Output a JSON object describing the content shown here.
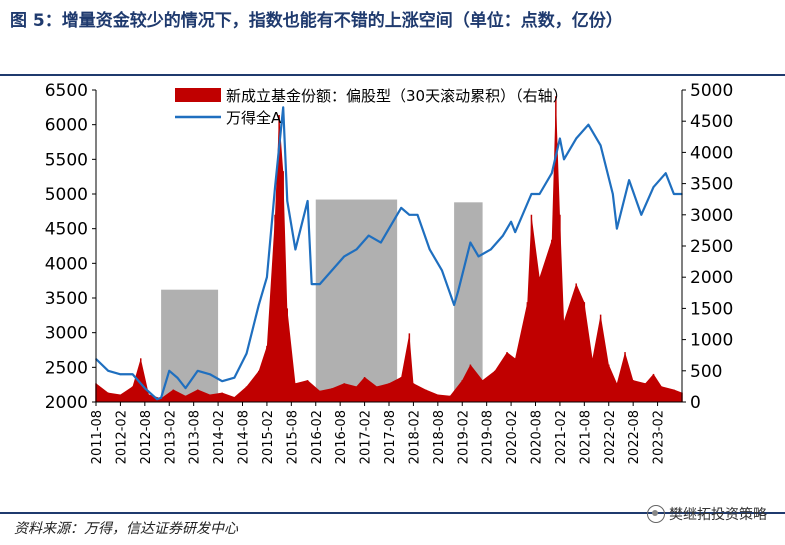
{
  "title": "图 5：增量资金较少的情况下，指数也能有不错的上涨空间（单位：点数，亿份）",
  "source": "资料来源：万得，信达证券研发中心",
  "watermark": "樊继拓投资策略",
  "colors": {
    "bar": "#c00000",
    "line": "#1f6fbf",
    "shade": "#b0b0b0",
    "title": "#1f3a6e"
  },
  "chart_data": {
    "type": "bar+line",
    "x_ticks": [
      "2011-08",
      "2012-02",
      "2012-08",
      "2013-02",
      "2013-08",
      "2014-02",
      "2014-08",
      "2015-02",
      "2015-08",
      "2016-02",
      "2016-08",
      "2017-02",
      "2017-08",
      "2018-02",
      "2018-08",
      "2019-02",
      "2019-08",
      "2020-02",
      "2020-08",
      "2021-02",
      "2021-08",
      "2022-02",
      "2022-08",
      "2023-02"
    ],
    "y_left": {
      "ticks": [
        2000,
        2500,
        3000,
        3500,
        4000,
        4500,
        5000,
        5500,
        6000,
        6500
      ],
      "range": [
        2000,
        6500
      ]
    },
    "y_right": {
      "ticks": [
        0,
        500,
        1000,
        1500,
        2000,
        2500,
        3000,
        3500,
        4000,
        4500,
        5000
      ],
      "range": [
        0,
        5000
      ]
    },
    "shaded_periods": [
      {
        "start": "2012-12",
        "end": "2014-02",
        "top": 3620
      },
      {
        "start": "2016-02",
        "end": "2017-10",
        "top": 4920
      },
      {
        "start": "2018-12",
        "end": "2019-07",
        "top": 4880
      }
    ],
    "series": [
      {
        "name": "新成立基金份额：偏股型（30天滚动累积）（右轴）",
        "type": "bar",
        "axis": "right",
        "points": [
          [
            "2011-08",
            300
          ],
          [
            "2011-11",
            150
          ],
          [
            "2012-02",
            120
          ],
          [
            "2012-05",
            250
          ],
          [
            "2012-07",
            700
          ],
          [
            "2012-09",
            120
          ],
          [
            "2012-12",
            60
          ],
          [
            "2013-03",
            200
          ],
          [
            "2013-06",
            100
          ],
          [
            "2013-09",
            200
          ],
          [
            "2013-12",
            120
          ],
          [
            "2014-03",
            150
          ],
          [
            "2014-06",
            80
          ],
          [
            "2014-09",
            250
          ],
          [
            "2014-12",
            500
          ],
          [
            "2015-02",
            900
          ],
          [
            "2015-04",
            3000
          ],
          [
            "2015-05",
            4600
          ],
          [
            "2015-06",
            3700
          ],
          [
            "2015-07",
            1500
          ],
          [
            "2015-09",
            300
          ],
          [
            "2015-12",
            350
          ],
          [
            "2016-03",
            180
          ],
          [
            "2016-06",
            220
          ],
          [
            "2016-09",
            300
          ],
          [
            "2016-12",
            250
          ],
          [
            "2017-02",
            400
          ],
          [
            "2017-05",
            250
          ],
          [
            "2017-08",
            300
          ],
          [
            "2017-11",
            400
          ],
          [
            "2018-01",
            1100
          ],
          [
            "2018-02",
            300
          ],
          [
            "2018-05",
            200
          ],
          [
            "2018-08",
            120
          ],
          [
            "2018-11",
            100
          ],
          [
            "2019-02",
            350
          ],
          [
            "2019-04",
            600
          ],
          [
            "2019-07",
            350
          ],
          [
            "2019-10",
            500
          ],
          [
            "2020-01",
            800
          ],
          [
            "2020-03",
            700
          ],
          [
            "2020-06",
            1600
          ],
          [
            "2020-07",
            3000
          ],
          [
            "2020-09",
            2000
          ],
          [
            "2020-12",
            2600
          ],
          [
            "2021-01",
            4900
          ],
          [
            "2021-02",
            3000
          ],
          [
            "2021-03",
            1300
          ],
          [
            "2021-06",
            1900
          ],
          [
            "2021-08",
            1600
          ],
          [
            "2021-10",
            700
          ],
          [
            "2021-12",
            1400
          ],
          [
            "2022-02",
            600
          ],
          [
            "2022-04",
            300
          ],
          [
            "2022-06",
            800
          ],
          [
            "2022-08",
            350
          ],
          [
            "2022-11",
            300
          ],
          [
            "2023-01",
            450
          ],
          [
            "2023-03",
            250
          ],
          [
            "2023-06",
            200
          ],
          [
            "2023-08",
            150
          ]
        ]
      },
      {
        "name": "万得全A",
        "type": "line",
        "axis": "left",
        "points": [
          [
            "2011-08",
            2620
          ],
          [
            "2011-11",
            2450
          ],
          [
            "2012-02",
            2400
          ],
          [
            "2012-05",
            2400
          ],
          [
            "2012-08",
            2200
          ],
          [
            "2012-11",
            2040
          ],
          [
            "2012-12",
            2060
          ],
          [
            "2013-02",
            2450
          ],
          [
            "2013-04",
            2350
          ],
          [
            "2013-06",
            2200
          ],
          [
            "2013-09",
            2450
          ],
          [
            "2013-12",
            2400
          ],
          [
            "2014-03",
            2300
          ],
          [
            "2014-06",
            2350
          ],
          [
            "2014-09",
            2700
          ],
          [
            "2014-12",
            3400
          ],
          [
            "2015-02",
            3800
          ],
          [
            "2015-04",
            5100
          ],
          [
            "2015-06",
            6250
          ],
          [
            "2015-07",
            4900
          ],
          [
            "2015-09",
            4200
          ],
          [
            "2015-12",
            4900
          ],
          [
            "2016-01",
            3700
          ],
          [
            "2016-03",
            3700
          ],
          [
            "2016-06",
            3900
          ],
          [
            "2016-09",
            4100
          ],
          [
            "2016-12",
            4200
          ],
          [
            "2017-03",
            4400
          ],
          [
            "2017-06",
            4300
          ],
          [
            "2017-09",
            4600
          ],
          [
            "2017-11",
            4800
          ],
          [
            "2018-01",
            4700
          ],
          [
            "2018-03",
            4700
          ],
          [
            "2018-06",
            4200
          ],
          [
            "2018-09",
            3900
          ],
          [
            "2018-12",
            3400
          ],
          [
            "2019-01",
            3600
          ],
          [
            "2019-04",
            4300
          ],
          [
            "2019-06",
            4100
          ],
          [
            "2019-09",
            4200
          ],
          [
            "2019-12",
            4400
          ],
          [
            "2020-02",
            4600
          ],
          [
            "2020-03",
            4450
          ],
          [
            "2020-07",
            5000
          ],
          [
            "2020-09",
            5000
          ],
          [
            "2020-12",
            5300
          ],
          [
            "2021-02",
            5800
          ],
          [
            "2021-03",
            5500
          ],
          [
            "2021-06",
            5800
          ],
          [
            "2021-09",
            6000
          ],
          [
            "2021-12",
            5700
          ],
          [
            "2022-03",
            5000
          ],
          [
            "2022-04",
            4500
          ],
          [
            "2022-07",
            5200
          ],
          [
            "2022-10",
            4700
          ],
          [
            "2023-01",
            5100
          ],
          [
            "2023-04",
            5300
          ],
          [
            "2023-06",
            5000
          ],
          [
            "2023-08",
            5000
          ]
        ]
      }
    ]
  }
}
